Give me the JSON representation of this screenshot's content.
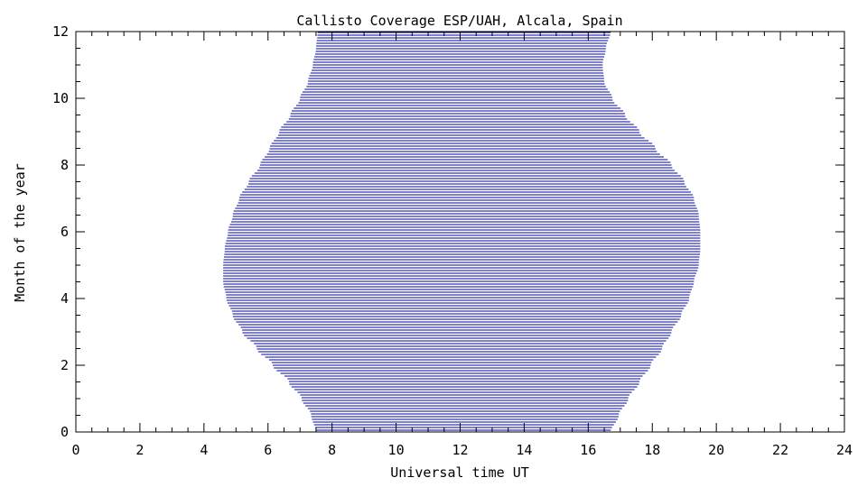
{
  "chart_data": {
    "type": "area",
    "title": "Callisto Coverage ESP/UAH, Alcala, Spain",
    "xlabel": "Universal time UT",
    "ylabel": "Month of the year",
    "xlim": [
      0,
      24
    ],
    "ylim": [
      0,
      12
    ],
    "x_ticks": [
      "0",
      "2",
      "4",
      "6",
      "8",
      "10",
      "12",
      "14",
      "16",
      "18",
      "20",
      "22",
      "24"
    ],
    "y_ticks": [
      "0",
      "2",
      "4",
      "6",
      "8",
      "10",
      "12"
    ],
    "grid": false,
    "legend": "none",
    "fill_style": "horizontal lines",
    "series": [
      {
        "months": [
          0.0,
          0.5,
          1.0,
          1.5,
          2.0,
          2.5,
          3.0,
          3.5,
          4.0,
          4.5,
          5.0,
          5.5,
          6.0,
          6.5,
          7.0,
          7.5,
          8.0,
          8.5,
          9.0,
          9.5,
          10.0,
          10.5,
          11.0,
          11.5,
          12.0
        ],
        "sunrise": [
          7.5,
          7.35,
          7.05,
          6.65,
          6.15,
          5.65,
          5.2,
          4.9,
          4.7,
          4.6,
          4.6,
          4.65,
          4.75,
          4.9,
          5.1,
          5.4,
          5.75,
          6.05,
          6.35,
          6.7,
          7.0,
          7.25,
          7.4,
          7.5,
          7.55
        ],
        "sunset": [
          16.7,
          16.95,
          17.25,
          17.6,
          17.95,
          18.3,
          18.6,
          18.9,
          19.15,
          19.3,
          19.45,
          19.5,
          19.5,
          19.45,
          19.3,
          19.0,
          18.6,
          18.1,
          17.6,
          17.15,
          16.75,
          16.5,
          16.45,
          16.55,
          16.7
        ]
      }
    ]
  },
  "colors": {
    "fill_line": "#0000a0",
    "axis": "#000000",
    "background": "#ffffff"
  }
}
